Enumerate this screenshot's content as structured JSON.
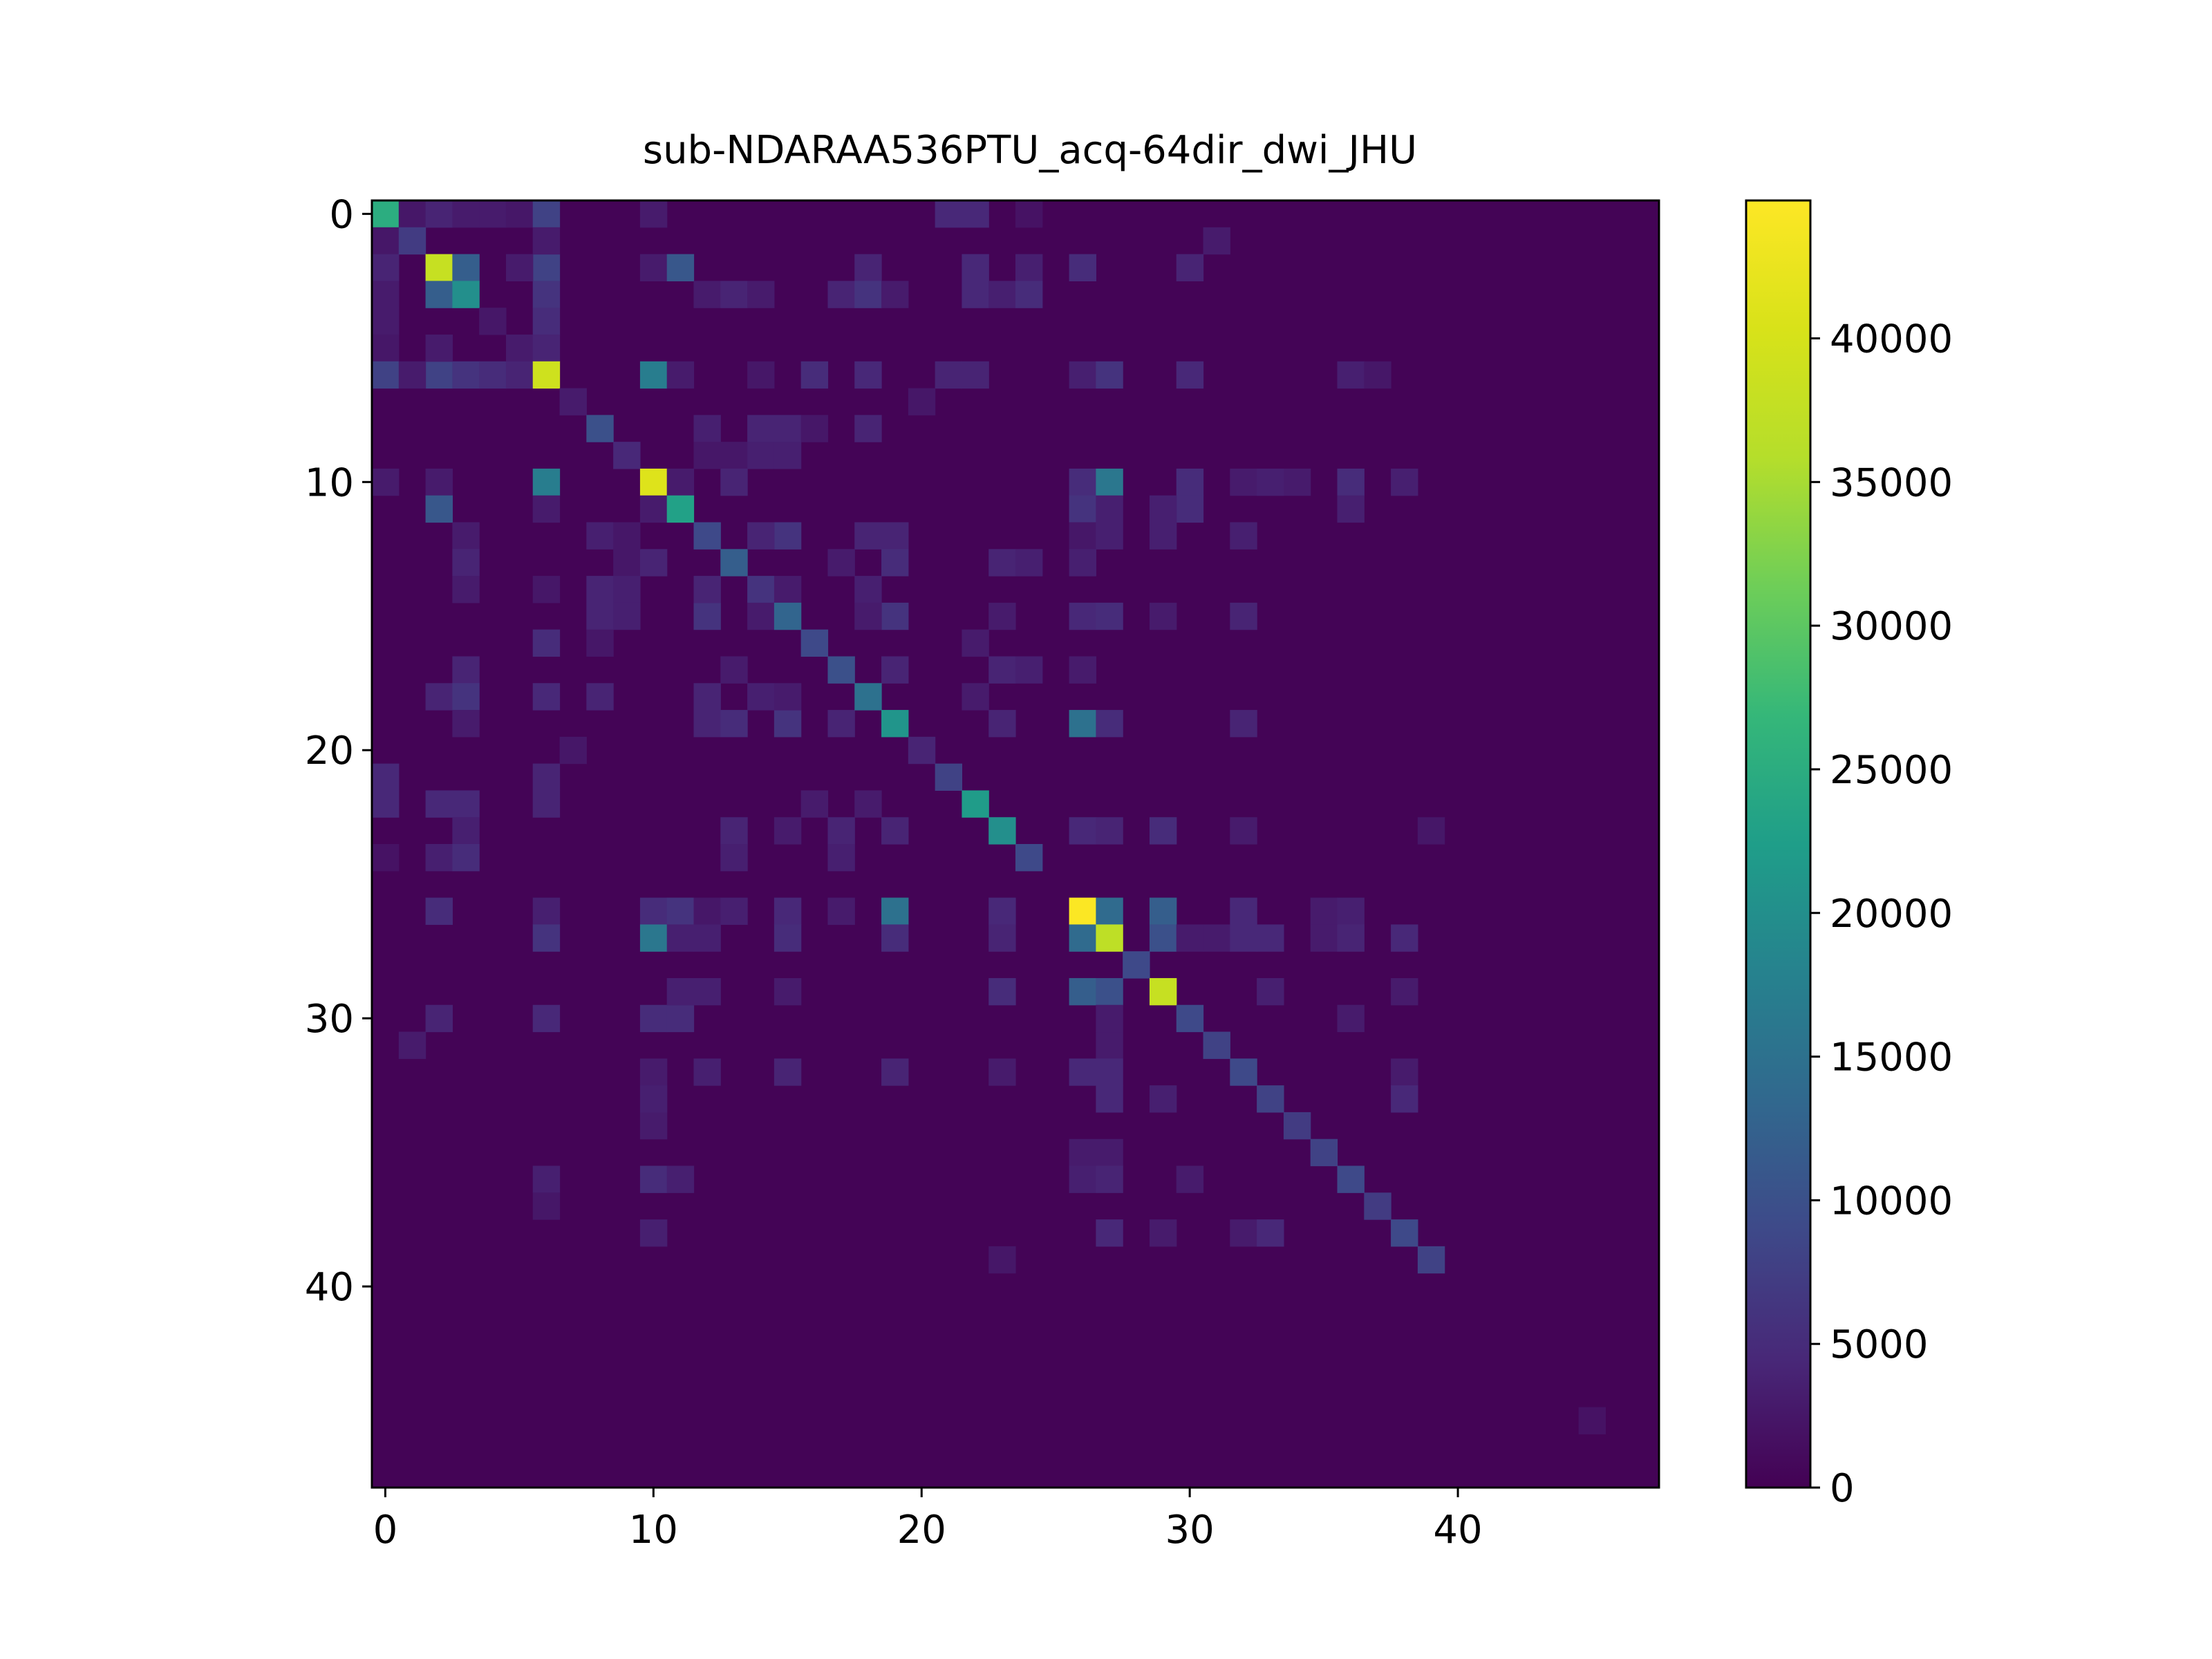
{
  "chart_data": {
    "type": "heatmap",
    "title": "sub-NDARAA536PTU_acq-64dir_dwi_JHU",
    "xlabel": "",
    "ylabel": "",
    "size": 48,
    "colormap": "viridis",
    "vmin": 0,
    "vmax": 44800,
    "x_ticks": [
      0,
      10,
      20,
      30,
      40
    ],
    "y_ticks": [
      0,
      10,
      20,
      30,
      40
    ],
    "colorbar_ticks": [
      0,
      5000,
      10000,
      15000,
      20000,
      25000,
      30000,
      35000,
      40000
    ],
    "background_value": 300,
    "cells": [
      [
        0,
        0,
        25000
      ],
      [
        0,
        1,
        2500
      ],
      [
        0,
        2,
        4000
      ],
      [
        0,
        3,
        3000
      ],
      [
        0,
        4,
        3000
      ],
      [
        0,
        5,
        2500
      ],
      [
        0,
        6,
        8000
      ],
      [
        0,
        10,
        3000
      ],
      [
        0,
        21,
        4500
      ],
      [
        0,
        22,
        4500
      ],
      [
        0,
        24,
        2000
      ],
      [
        1,
        1,
        7000
      ],
      [
        1,
        31,
        2500
      ],
      [
        2,
        0,
        3500
      ],
      [
        2,
        2,
        38000
      ],
      [
        2,
        3,
        12000
      ],
      [
        2,
        6,
        8000
      ],
      [
        2,
        10,
        3000
      ],
      [
        2,
        11,
        11000
      ],
      [
        2,
        18,
        4000
      ],
      [
        2,
        22,
        4000
      ],
      [
        2,
        24,
        3500
      ],
      [
        2,
        26,
        4500
      ],
      [
        2,
        30,
        3000
      ],
      [
        3,
        2,
        12000
      ],
      [
        3,
        3,
        20000
      ],
      [
        3,
        6,
        5000
      ],
      [
        3,
        12,
        3000
      ],
      [
        3,
        13,
        3500
      ],
      [
        3,
        17,
        3000
      ],
      [
        3,
        18,
        6000
      ],
      [
        3,
        22,
        4500
      ],
      [
        3,
        23,
        3500
      ],
      [
        3,
        24,
        5000
      ],
      [
        4,
        4,
        2500
      ],
      [
        4,
        6,
        3000
      ],
      [
        5,
        2,
        3000
      ],
      [
        5,
        5,
        3000
      ],
      [
        5,
        6,
        4000
      ],
      [
        6,
        0,
        7000
      ],
      [
        6,
        1,
        3000
      ],
      [
        6,
        2,
        7000
      ],
      [
        6,
        3,
        6000
      ],
      [
        6,
        4,
        5000
      ],
      [
        6,
        6,
        39000
      ],
      [
        6,
        10,
        17000
      ],
      [
        6,
        11,
        3000
      ],
      [
        6,
        14,
        2500
      ],
      [
        6,
        16,
        5000
      ],
      [
        6,
        18,
        4500
      ],
      [
        6,
        21,
        4000
      ],
      [
        6,
        22,
        4000
      ],
      [
        6,
        26,
        3000
      ],
      [
        6,
        27,
        6000
      ],
      [
        6,
        30,
        4500
      ],
      [
        6,
        36,
        3000
      ],
      [
        6,
        37,
        2500
      ],
      [
        7,
        7,
        3000
      ],
      [
        7,
        20,
        2500
      ],
      [
        8,
        8,
        10000
      ],
      [
        8,
        12,
        3500
      ],
      [
        8,
        14,
        4000
      ],
      [
        8,
        15,
        4000
      ],
      [
        8,
        16,
        2500
      ],
      [
        8,
        18,
        4000
      ],
      [
        9,
        9,
        4500
      ],
      [
        9,
        13,
        2500
      ],
      [
        9,
        14,
        3500
      ],
      [
        9,
        15,
        3500
      ],
      [
        10,
        0,
        3000
      ],
      [
        10,
        2,
        2500
      ],
      [
        10,
        6,
        17000
      ],
      [
        10,
        10,
        41000
      ],
      [
        10,
        11,
        3000
      ],
      [
        10,
        13,
        4000
      ],
      [
        10,
        26,
        5000
      ],
      [
        10,
        27,
        15000
      ],
      [
        10,
        30,
        5000
      ],
      [
        10,
        32,
        3000
      ],
      [
        10,
        34,
        3000
      ],
      [
        10,
        36,
        5000
      ],
      [
        10,
        38,
        3000
      ],
      [
        11,
        2,
        9000
      ],
      [
        11,
        10,
        3000
      ],
      [
        11,
        11,
        23000
      ],
      [
        11,
        26,
        6000
      ],
      [
        11,
        27,
        3000
      ],
      [
        11,
        30,
        4500
      ],
      [
        11,
        36,
        3000
      ],
      [
        12,
        8,
        2500
      ],
      [
        12,
        9,
        2500
      ],
      [
        12,
        12,
        9000
      ],
      [
        12,
        15,
        6000
      ],
      [
        12,
        18,
        3000
      ],
      [
        12,
        19,
        3000
      ],
      [
        12,
        26,
        2500
      ],
      [
        12,
        32,
        3000
      ],
      [
        13,
        3,
        4000
      ],
      [
        13,
        10,
        2500
      ],
      [
        13,
        13,
        12000
      ],
      [
        13,
        17,
        3000
      ],
      [
        13,
        19,
        5000
      ],
      [
        13,
        23,
        4000
      ],
      [
        13,
        24,
        3500
      ],
      [
        14,
        3,
        3000
      ],
      [
        14,
        8,
        3000
      ],
      [
        14,
        9,
        3000
      ],
      [
        14,
        12,
        4000
      ],
      [
        14,
        14,
        6000
      ],
      [
        14,
        15,
        3000
      ],
      [
        14,
        18,
        2500
      ],
      [
        15,
        8,
        3000
      ],
      [
        15,
        12,
        5000
      ],
      [
        15,
        15,
        13000
      ],
      [
        15,
        19,
        6000
      ],
      [
        15,
        26,
        4500
      ],
      [
        15,
        27,
        4500
      ],
      [
        15,
        29,
        3000
      ],
      [
        15,
        32,
        3500
      ],
      [
        16,
        6,
        4500
      ],
      [
        16,
        16,
        9000
      ],
      [
        16,
        22,
        3000
      ],
      [
        17,
        3,
        4000
      ],
      [
        17,
        17,
        10000
      ],
      [
        17,
        19,
        4000
      ],
      [
        17,
        23,
        4000
      ],
      [
        17,
        24,
        3500
      ],
      [
        17,
        26,
        3000
      ],
      [
        18,
        2,
        4000
      ],
      [
        18,
        3,
        5000
      ],
      [
        18,
        6,
        4000
      ],
      [
        18,
        8,
        3000
      ],
      [
        18,
        12,
        4000
      ],
      [
        18,
        14,
        3500
      ],
      [
        18,
        15,
        3000
      ],
      [
        18,
        18,
        15000
      ],
      [
        18,
        22,
        3000
      ],
      [
        19,
        3,
        3000
      ],
      [
        19,
        12,
        4000
      ],
      [
        19,
        15,
        5000
      ],
      [
        19,
        19,
        21000
      ],
      [
        19,
        23,
        3500
      ],
      [
        19,
        26,
        13000
      ],
      [
        19,
        27,
        4500
      ],
      [
        19,
        32,
        3500
      ],
      [
        20,
        20,
        4000
      ],
      [
        21,
        0,
        3000
      ],
      [
        21,
        21,
        8000
      ],
      [
        22,
        0,
        3500
      ],
      [
        22,
        2,
        4500
      ],
      [
        22,
        3,
        4500
      ],
      [
        22,
        6,
        3500
      ],
      [
        22,
        22,
        22000
      ],
      [
        23,
        3,
        3500
      ],
      [
        23,
        13,
        3500
      ],
      [
        23,
        15,
        3000
      ],
      [
        23,
        17,
        4000
      ],
      [
        23,
        19,
        4000
      ],
      [
        23,
        23,
        20000
      ],
      [
        23,
        26,
        4500
      ],
      [
        23,
        27,
        4000
      ],
      [
        23,
        29,
        5000
      ],
      [
        24,
        2,
        3500
      ],
      [
        24,
        3,
        4500
      ],
      [
        24,
        24,
        9000
      ],
      [
        26,
        2,
        5000
      ],
      [
        26,
        6,
        3500
      ],
      [
        26,
        10,
        5000
      ],
      [
        26,
        11,
        6000
      ],
      [
        26,
        13,
        3500
      ],
      [
        26,
        15,
        4000
      ],
      [
        26,
        19,
        15000
      ],
      [
        26,
        23,
        4000
      ],
      [
        26,
        26,
        44500
      ],
      [
        26,
        27,
        14000
      ],
      [
        26,
        29,
        12000
      ],
      [
        26,
        32,
        3500
      ],
      [
        26,
        35,
        3000
      ],
      [
        26,
        36,
        3000
      ],
      [
        27,
        6,
        5000
      ],
      [
        27,
        10,
        16000
      ],
      [
        27,
        11,
        3500
      ],
      [
        27,
        12,
        3500
      ],
      [
        27,
        15,
        5000
      ],
      [
        27,
        19,
        5000
      ],
      [
        27,
        26,
        10000
      ],
      [
        27,
        27,
        37000
      ],
      [
        27,
        29,
        10000
      ],
      [
        27,
        31,
        3000
      ],
      [
        27,
        32,
        4500
      ],
      [
        27,
        33,
        4500
      ],
      [
        27,
        35,
        3000
      ],
      [
        27,
        36,
        4000
      ],
      [
        27,
        38,
        4000
      ],
      [
        28,
        28,
        9000
      ],
      [
        29,
        11,
        3500
      ],
      [
        29,
        12,
        3500
      ],
      [
        29,
        15,
        3000
      ],
      [
        29,
        23,
        4000
      ],
      [
        29,
        26,
        10000
      ],
      [
        29,
        27,
        10000
      ],
      [
        29,
        29,
        38000
      ],
      [
        29,
        33,
        3500
      ],
      [
        29,
        38,
        3000
      ],
      [
        30,
        2,
        4000
      ],
      [
        30,
        6,
        3500
      ],
      [
        30,
        10,
        5000
      ],
      [
        30,
        11,
        5000
      ],
      [
        30,
        27,
        3000
      ],
      [
        30,
        30,
        9000
      ],
      [
        30,
        36,
        3000
      ],
      [
        31,
        1,
        3000
      ],
      [
        31,
        31,
        8000
      ],
      [
        32,
        12,
        3500
      ],
      [
        32,
        15,
        4000
      ],
      [
        32,
        19,
        4000
      ],
      [
        32,
        23,
        3000
      ],
      [
        32,
        26,
        4500
      ],
      [
        32,
        27,
        4000
      ],
      [
        32,
        32,
        9000
      ],
      [
        32,
        38,
        3000
      ],
      [
        33,
        10,
        3500
      ],
      [
        33,
        27,
        4500
      ],
      [
        33,
        33,
        8000
      ],
      [
        33,
        38,
        4500
      ],
      [
        34,
        34,
        7000
      ],
      [
        35,
        35,
        8000
      ],
      [
        36,
        6,
        3500
      ],
      [
        36,
        10,
        4500
      ],
      [
        36,
        11,
        3500
      ],
      [
        36,
        26,
        3500
      ],
      [
        36,
        27,
        4000
      ],
      [
        36,
        30,
        3000
      ],
      [
        36,
        36,
        9000
      ],
      [
        37,
        37,
        7000
      ],
      [
        38,
        10,
        3500
      ],
      [
        38,
        27,
        4500
      ],
      [
        38,
        29,
        3000
      ],
      [
        38,
        32,
        3000
      ],
      [
        38,
        33,
        3500
      ],
      [
        38,
        38,
        9000
      ],
      [
        39,
        23,
        2500
      ],
      [
        39,
        39,
        8000
      ],
      [
        45,
        45,
        2000
      ]
    ]
  }
}
